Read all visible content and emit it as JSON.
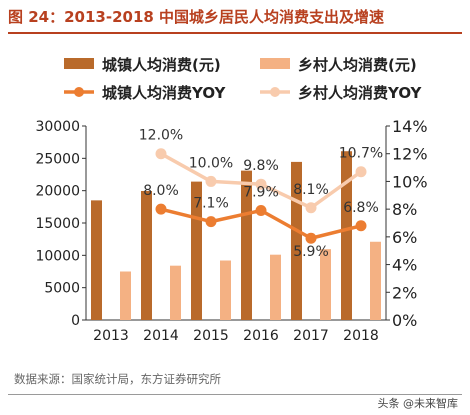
{
  "page": {
    "title": "图 24：2013-2018 中国城乡居民人均消费支出及增速",
    "source": "数据来源：国家统计局，东方证券研究所",
    "watermark": "头条 @未来智库"
  },
  "chart_data": {
    "type": "bar",
    "categories": [
      "2013",
      "2014",
      "2015",
      "2016",
      "2017",
      "2018"
    ],
    "series": [
      {
        "name": "城镇人均消费(元)",
        "type": "bar",
        "axis": "left",
        "color": "#b96a2b",
        "values": [
          18500,
          19950,
          21400,
          23100,
          24450,
          26100
        ]
      },
      {
        "name": "乡村人均消费(元)",
        "type": "bar",
        "axis": "left",
        "color": "#f4b183",
        "values": [
          7500,
          8400,
          9200,
          10100,
          10950,
          12100
        ]
      },
      {
        "name": "城镇人均消费YOY",
        "type": "line",
        "axis": "right",
        "color": "#ec7d31",
        "values": [
          null,
          8.0,
          7.1,
          7.9,
          5.9,
          6.8
        ],
        "labels": [
          "",
          "8.0%",
          "7.1%",
          "7.9%",
          "5.9%",
          "6.8%"
        ]
      },
      {
        "name": "乡村人均消费YOY",
        "type": "line",
        "axis": "right",
        "color": "#f8cbad",
        "values": [
          null,
          12.0,
          10.0,
          9.8,
          8.1,
          10.7
        ],
        "labels": [
          "",
          "12.0%",
          "10.0%",
          "9.8%",
          "8.1%",
          "10.7%"
        ]
      }
    ],
    "ylim_left": [
      0,
      30000
    ],
    "yticks_left": [
      "0",
      "5000",
      "10000",
      "15000",
      "20000",
      "25000",
      "30000"
    ],
    "ylim_right": [
      0,
      14
    ],
    "yticks_right": [
      "0%",
      "2%",
      "4%",
      "6%",
      "8%",
      "10%",
      "12%",
      "14%"
    ],
    "legend_position": "top",
    "grid": false
  }
}
